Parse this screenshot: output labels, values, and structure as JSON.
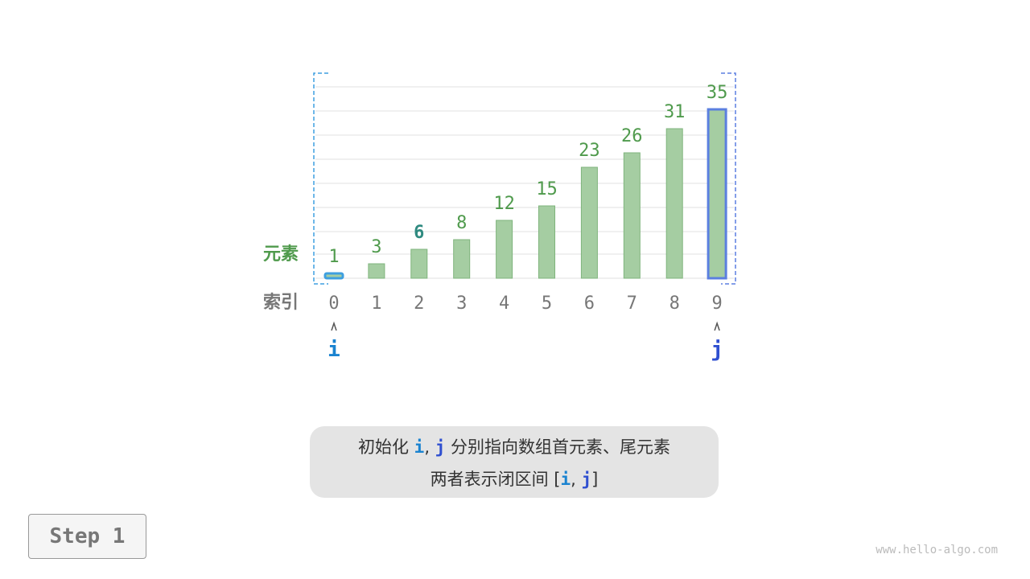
{
  "chart_data": {
    "type": "bar",
    "categories": [
      "0",
      "1",
      "2",
      "3",
      "4",
      "5",
      "6",
      "7",
      "8",
      "9"
    ],
    "values": [
      1,
      3,
      6,
      8,
      12,
      15,
      23,
      26,
      31,
      35
    ],
    "row_labels": {
      "elements": "元素",
      "index": "索引"
    },
    "highlighted_value_index": 2,
    "pointers": [
      {
        "name": "i",
        "index": 0,
        "color": "#1a83d0"
      },
      {
        "name": "j",
        "index": 9,
        "color": "#2f4fd0"
      }
    ],
    "grid": true,
    "colors": {
      "bar": "#a5cda2",
      "bar_edge": "#7fb47c",
      "label": "#4f9a4c",
      "highlight_label": "#2f8a80",
      "index_label": "#777777",
      "i_bracket": "#3e9fe0",
      "j_bracket": "#5b7fe0"
    }
  },
  "caption": {
    "line1_prefix": "初始化 ",
    "i": "i",
    "comma": ", ",
    "j": "j",
    "line1_suffix": " 分别指向数组首元素、尾元素",
    "line2_prefix": "两者表示闭区间 [",
    "line2_suffix": "]"
  },
  "step_label": "Step 1",
  "watermark": "www.hello-algo.com"
}
